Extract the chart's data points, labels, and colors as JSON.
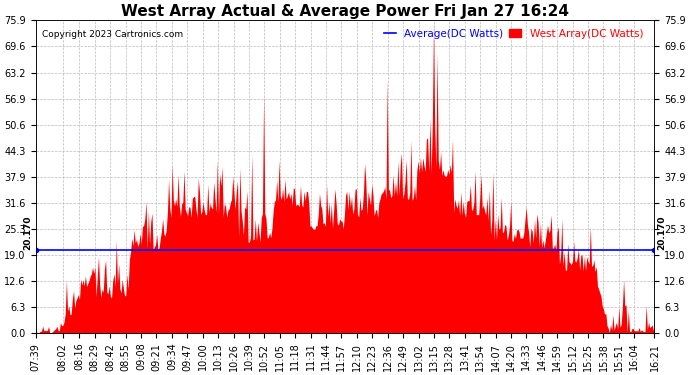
{
  "title": "West Array Actual & Average Power Fri Jan 27 16:24",
  "copyright": "Copyright 2023 Cartronics.com",
  "legend_average": "Average(DC Watts)",
  "legend_west": "West Array(DC Watts)",
  "avg_value": 20.17,
  "avg_label": "20.170",
  "ymin": 0.0,
  "ymax": 75.9,
  "yticks": [
    0.0,
    6.3,
    12.6,
    19.0,
    25.3,
    31.6,
    37.9,
    44.3,
    50.6,
    56.9,
    63.2,
    69.6,
    75.9
  ],
  "fill_color": "#FF0000",
  "line_color": "#0000FF",
  "background_color": "#FFFFFF",
  "grid_color": "#BBBBBB",
  "title_fontsize": 11,
  "tick_fontsize": 7,
  "xtick_labels": [
    "07:39",
    "08:02",
    "08:16",
    "08:29",
    "08:42",
    "08:55",
    "09:08",
    "09:21",
    "09:34",
    "09:47",
    "10:00",
    "10:13",
    "10:26",
    "10:39",
    "10:52",
    "11:05",
    "11:18",
    "11:31",
    "11:44",
    "11:57",
    "12:10",
    "12:23",
    "12:36",
    "12:49",
    "13:02",
    "13:15",
    "13:28",
    "13:41",
    "13:54",
    "14:07",
    "14:20",
    "14:33",
    "14:46",
    "14:59",
    "15:12",
    "15:25",
    "15:38",
    "15:51",
    "16:04",
    "16:21"
  ]
}
